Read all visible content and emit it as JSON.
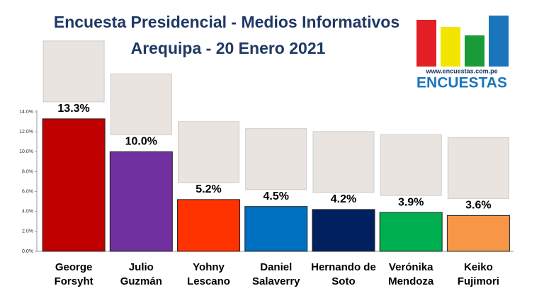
{
  "chart_data": {
    "type": "bar",
    "title": "Encuesta Presidencial - Medios Informativos",
    "subtitle": "Arequipa - 20 Enero 2021",
    "categories": [
      [
        "George",
        "Forsyht"
      ],
      [
        "Julio",
        "Guzmán"
      ],
      [
        "Yohny",
        "Lescano"
      ],
      [
        "Daniel",
        "Salaverry"
      ],
      [
        "Hernando de",
        "Soto"
      ],
      [
        "Verónika",
        "Mendoza"
      ],
      [
        "Keiko",
        "Fujimori"
      ]
    ],
    "values": [
      13.3,
      10.0,
      5.2,
      4.5,
      4.2,
      3.9,
      3.6
    ],
    "value_labels": [
      "13.3%",
      "10.0%",
      "5.2%",
      "4.5%",
      "4.2%",
      "3.9%",
      "3.6%"
    ],
    "colors": [
      "#c00000",
      "#7030a0",
      "#ff3300",
      "#0070c0",
      "#002060",
      "#00b050",
      "#f79646"
    ],
    "ylim": [
      0,
      14
    ],
    "yticks": [
      {
        "value": 0,
        "label": "0.0%"
      },
      {
        "value": 2,
        "label": "2.0%"
      },
      {
        "value": 4,
        "label": "4.0%"
      },
      {
        "value": 6,
        "label": "6.0%"
      },
      {
        "value": 8,
        "label": "8.0%"
      },
      {
        "value": 10,
        "label": "10.0%"
      },
      {
        "value": 12,
        "label": "12.0%"
      },
      {
        "value": 14,
        "label": "14.0%"
      }
    ],
    "grid": false,
    "logo": {
      "url": "www.encuestas.com.pe",
      "name": "ENCUESTAS"
    }
  }
}
